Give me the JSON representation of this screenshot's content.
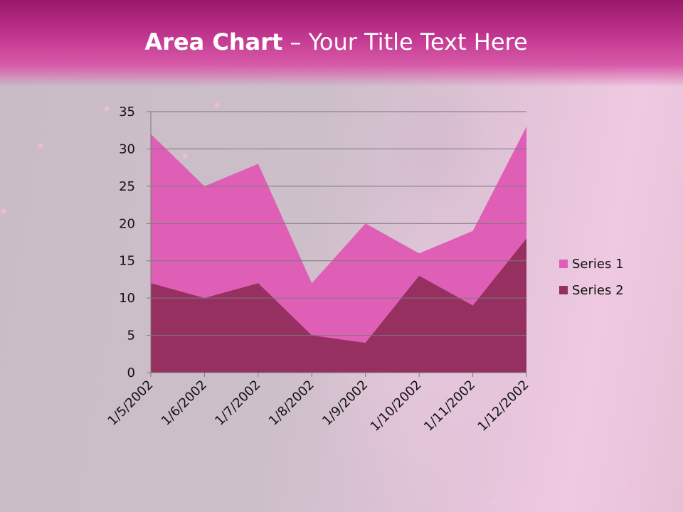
{
  "slide": {
    "title_bold": "Area Chart",
    "title_rest": " – Your Title Text Here"
  },
  "colors": {
    "header": "#c0358e",
    "series1": "#e05fb6",
    "series2": "#953060",
    "gridline": "#7a7a7a"
  },
  "chart_data": {
    "type": "area",
    "categories": [
      "1/5/2002",
      "1/6/2002",
      "1/7/2002",
      "1/8/2002",
      "1/9/2002",
      "1/10/2002",
      "1/11/2002",
      "1/12/2002"
    ],
    "series": [
      {
        "name": "Series 1",
        "values": [
          32,
          25,
          28,
          12,
          20,
          16,
          19,
          33
        ]
      },
      {
        "name": "Series 2",
        "values": [
          12,
          10,
          12,
          5,
          4,
          13,
          9,
          18
        ]
      }
    ],
    "ylim": [
      0,
      35
    ],
    "yticks": [
      "0",
      "5",
      "10",
      "15",
      "20",
      "25",
      "30",
      "35"
    ],
    "grid": true,
    "legend": "right"
  }
}
